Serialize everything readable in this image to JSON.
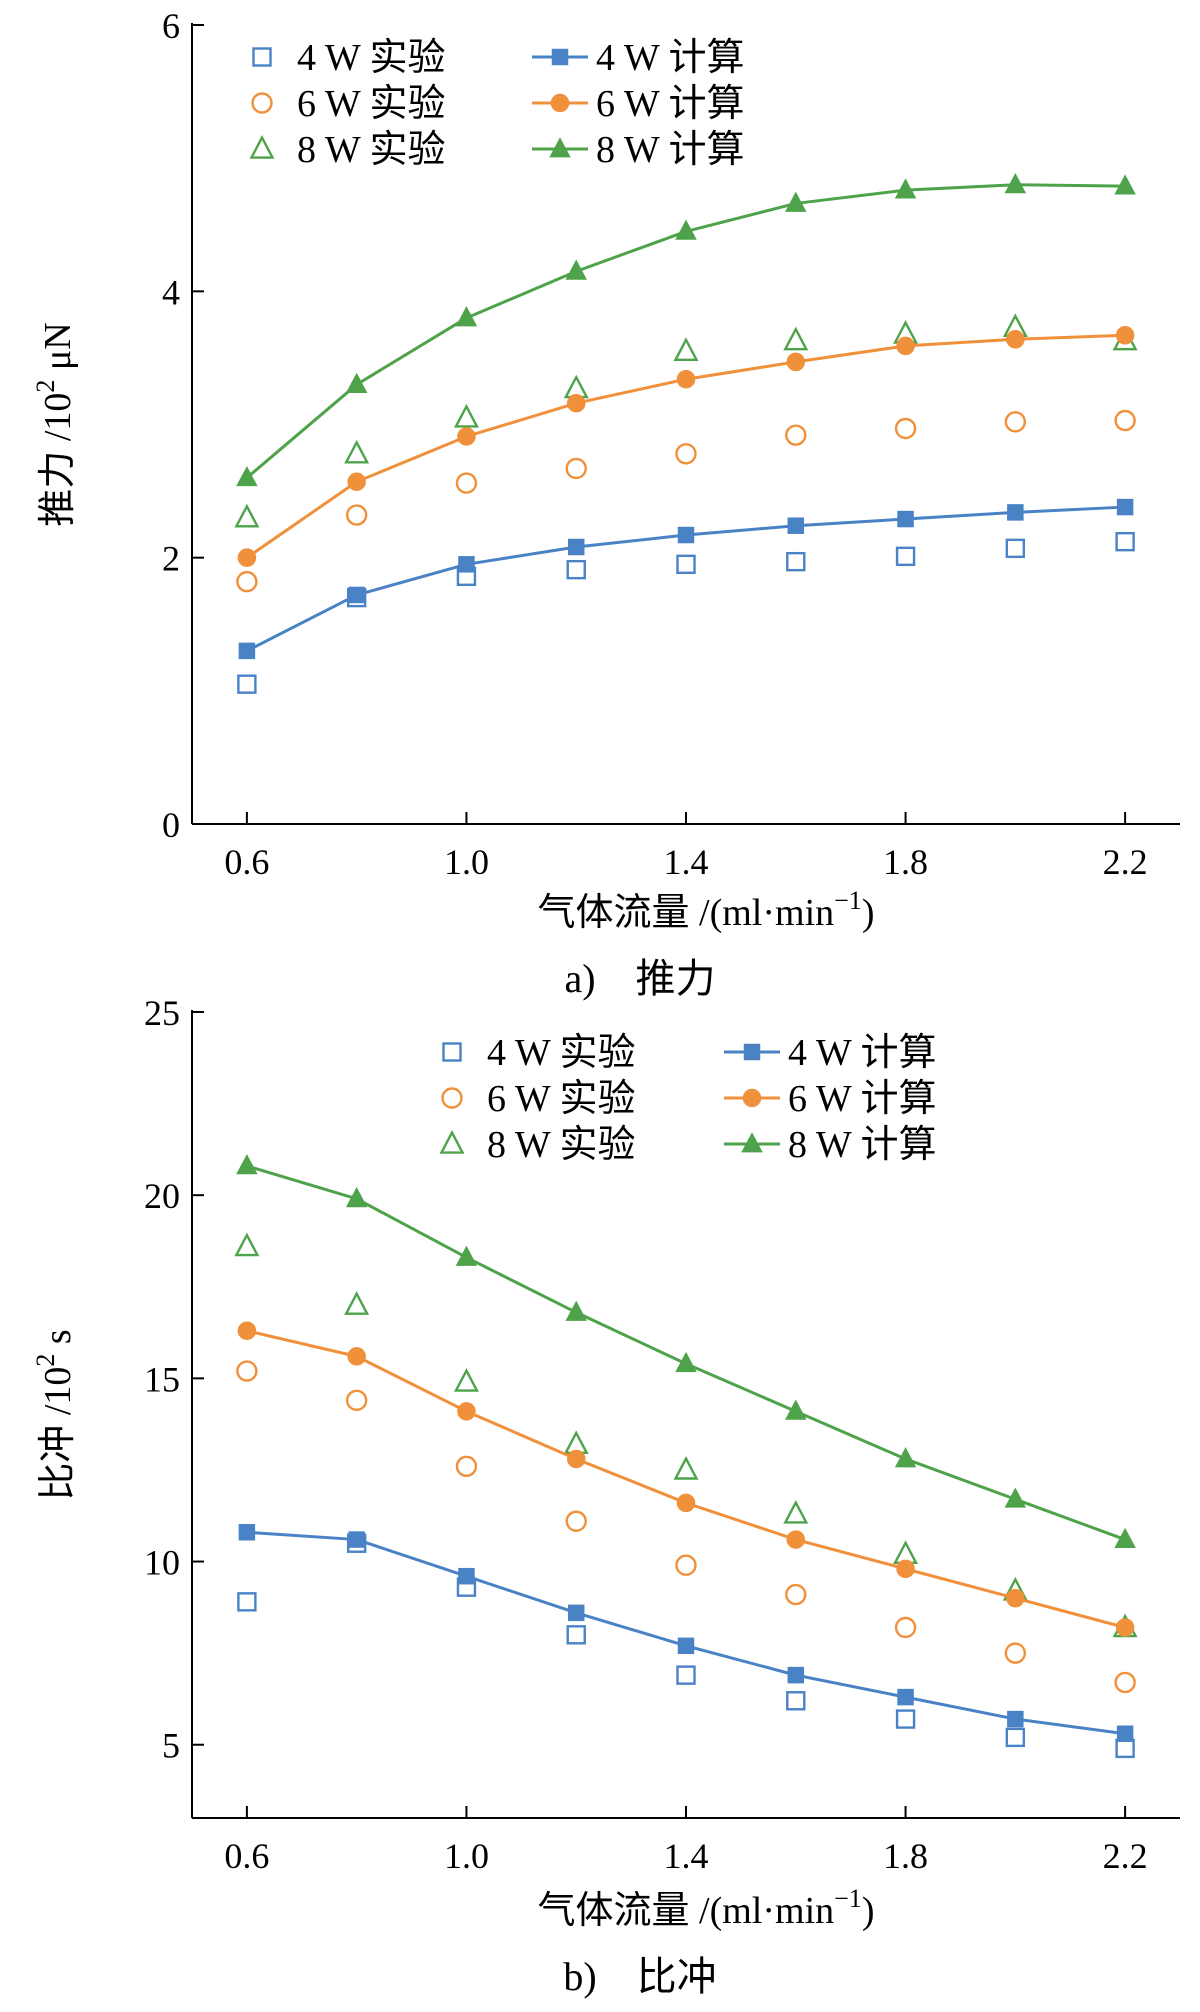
{
  "chart_data": [
    {
      "type": "line",
      "caption": "a)　推力",
      "ylabel_main": "推力 /10",
      "ylabel_sup": "2",
      "ylabel_unit": " μN",
      "xlabel_main": "气体流量 /(ml·min",
      "xlabel_sup": "−1",
      "xlabel_tail": ")",
      "x": [
        0.6,
        0.8,
        1.0,
        1.2,
        1.4,
        1.6,
        1.8,
        2.0,
        2.2
      ],
      "xlim": [
        0.5,
        2.3
      ],
      "ylim": [
        0,
        6
      ],
      "xticks": [
        0.6,
        1.0,
        1.4,
        1.8,
        2.2
      ],
      "xtick_labels": [
        "0.6",
        "1.0",
        "1.4",
        "1.8",
        "2.2"
      ],
      "yticks": [
        0,
        2,
        4,
        6
      ],
      "ytick_labels": [
        "0",
        "2",
        "4",
        "6"
      ],
      "grid": false,
      "legend_position": "top-left",
      "series": [
        {
          "name": "4 W 实验",
          "kind": "experiment",
          "color": "#4a82c6",
          "marker": "square",
          "values": [
            1.05,
            1.7,
            1.86,
            1.91,
            1.95,
            1.97,
            2.01,
            2.07,
            2.12
          ]
        },
        {
          "name": "6 W 实验",
          "kind": "experiment",
          "color": "#f0903a",
          "marker": "circle",
          "values": [
            1.82,
            2.32,
            2.56,
            2.67,
            2.78,
            2.92,
            2.97,
            3.02,
            3.03
          ]
        },
        {
          "name": "8 W 实验",
          "kind": "experiment",
          "color": "#4ea34a",
          "marker": "triangle",
          "values": [
            2.3,
            2.78,
            3.05,
            3.27,
            3.55,
            3.63,
            3.68,
            3.73,
            3.63
          ]
        },
        {
          "name": "4 W 计算",
          "kind": "calculation",
          "color": "#4a82c6",
          "marker": "square",
          "values": [
            1.3,
            1.72,
            1.95,
            2.08,
            2.17,
            2.24,
            2.29,
            2.34,
            2.38
          ]
        },
        {
          "name": "6 W 计算",
          "kind": "calculation",
          "color": "#f0903a",
          "marker": "circle",
          "values": [
            2.0,
            2.57,
            2.91,
            3.16,
            3.34,
            3.47,
            3.59,
            3.64,
            3.67
          ]
        },
        {
          "name": "8 W 计算",
          "kind": "calculation",
          "color": "#4ea34a",
          "marker": "triangle",
          "values": [
            2.6,
            3.3,
            3.8,
            4.15,
            4.45,
            4.66,
            4.76,
            4.8,
            4.79
          ]
        }
      ]
    },
    {
      "type": "line",
      "caption": "b)　比冲",
      "ylabel_main": "比冲 /10",
      "ylabel_sup": "2",
      "ylabel_unit": " s",
      "xlabel_main": "气体流量 /(ml·min",
      "xlabel_sup": "−1",
      "xlabel_tail": ")",
      "x": [
        0.6,
        0.8,
        1.0,
        1.2,
        1.4,
        1.6,
        1.8,
        2.0,
        2.2
      ],
      "xlim": [
        0.5,
        2.3
      ],
      "ylim": [
        3,
        25
      ],
      "xticks": [
        0.6,
        1.0,
        1.4,
        1.8,
        2.2
      ],
      "xtick_labels": [
        "0.6",
        "1.0",
        "1.4",
        "1.8",
        "2.2"
      ],
      "yticks": [
        5,
        10,
        15,
        20,
        25
      ],
      "ytick_labels": [
        "5",
        "10",
        "15",
        "20",
        "25"
      ],
      "grid": false,
      "legend_position": "top-right",
      "series": [
        {
          "name": "4 W 实验",
          "kind": "experiment",
          "color": "#4a82c6",
          "marker": "square",
          "values": [
            8.9,
            10.5,
            9.3,
            8.0,
            6.9,
            6.2,
            5.7,
            5.2,
            4.9
          ]
        },
        {
          "name": "6 W 实验",
          "kind": "experiment",
          "color": "#f0903a",
          "marker": "circle",
          "values": [
            15.2,
            14.4,
            12.6,
            11.1,
            9.9,
            9.1,
            8.2,
            7.5,
            6.7
          ]
        },
        {
          "name": "8 W 实验",
          "kind": "experiment",
          "color": "#4ea34a",
          "marker": "triangle",
          "values": [
            18.6,
            17.0,
            14.9,
            13.2,
            12.5,
            11.3,
            10.2,
            9.2,
            8.2
          ]
        },
        {
          "name": "4 W 计算",
          "kind": "calculation",
          "color": "#4a82c6",
          "marker": "square",
          "values": [
            10.8,
            10.6,
            9.6,
            8.6,
            7.7,
            6.9,
            6.3,
            5.7,
            5.3
          ]
        },
        {
          "name": "6 W 计算",
          "kind": "calculation",
          "color": "#f0903a",
          "marker": "circle",
          "values": [
            16.3,
            15.6,
            14.1,
            12.8,
            11.6,
            10.6,
            9.8,
            9.0,
            8.2
          ]
        },
        {
          "name": "8 W 计算",
          "kind": "calculation",
          "color": "#4ea34a",
          "marker": "triangle",
          "values": [
            20.8,
            19.9,
            18.3,
            16.8,
            15.4,
            14.1,
            12.8,
            11.7,
            10.6
          ]
        }
      ]
    }
  ]
}
